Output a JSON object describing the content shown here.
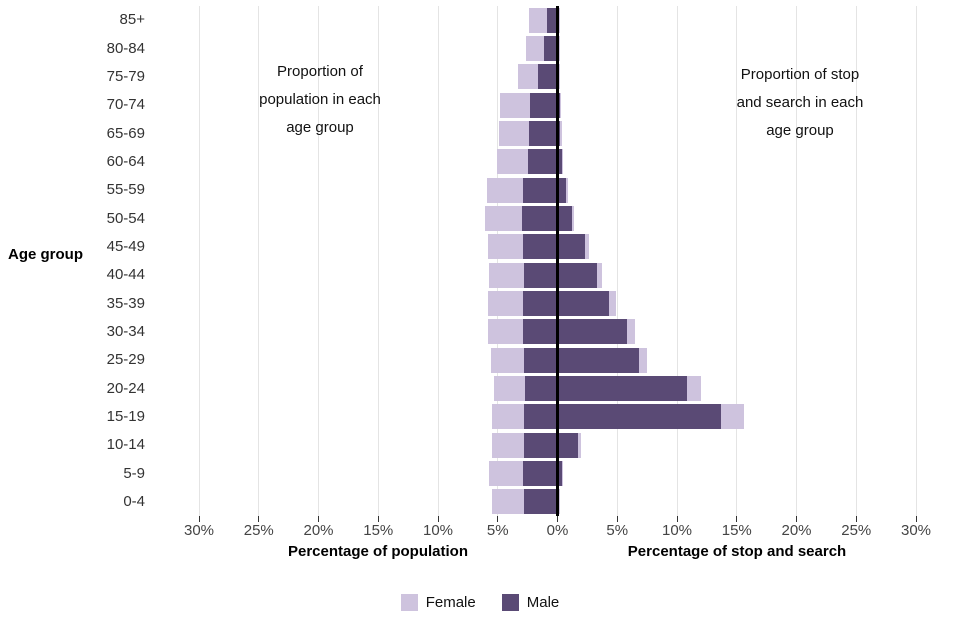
{
  "chart_data": {
    "type": "bar",
    "subtype": "population-pyramid-back-to-back",
    "age_groups": [
      "85+",
      "80-84",
      "75-79",
      "70-74",
      "65-69",
      "60-64",
      "55-59",
      "50-54",
      "45-49",
      "40-44",
      "35-39",
      "30-34",
      "25-29",
      "20-24",
      "15-19",
      "10-14",
      "5-9",
      "0-4"
    ],
    "population": {
      "male": [
        0.9,
        1.1,
        1.6,
        2.3,
        2.4,
        2.5,
        2.9,
        3.0,
        2.9,
        2.8,
        2.9,
        2.9,
        2.8,
        2.7,
        2.8,
        2.8,
        2.9,
        2.8
      ],
      "female": [
        1.5,
        1.5,
        1.7,
        2.5,
        2.5,
        2.6,
        3.0,
        3.1,
        2.9,
        2.9,
        2.9,
        2.9,
        2.8,
        2.6,
        2.7,
        2.7,
        2.8,
        2.7
      ]
    },
    "stop_and_search": {
      "male": [
        0.1,
        0.1,
        0.15,
        0.2,
        0.25,
        0.4,
        0.75,
        1.2,
        2.3,
        3.3,
        4.3,
        5.8,
        6.8,
        10.8,
        13.7,
        1.7,
        0.35,
        0.15
      ],
      "female": [
        0.05,
        0.05,
        0.05,
        0.1,
        0.1,
        0.1,
        0.15,
        0.2,
        0.3,
        0.4,
        0.6,
        0.7,
        0.7,
        1.2,
        1.9,
        0.3,
        0.1,
        0.05
      ]
    },
    "x_tick_values": [
      -30,
      -25,
      -20,
      -15,
      -10,
      -5,
      0,
      5,
      10,
      15,
      20,
      25,
      30
    ],
    "x_tick_labels": [
      "30%",
      "25%",
      "20%",
      "15%",
      "10%",
      "5%",
      "0%",
      "5%",
      "10%",
      "15%",
      "20%",
      "25%",
      "30%"
    ],
    "units": "percent",
    "grid": "vertical-major-only",
    "legend_position": "bottom",
    "y_axis_title": "Age group",
    "left_axis_title": "Percentage of population",
    "right_axis_title": "Percentage of stop and search",
    "annotation_left": "Proportion of\npopulation in each\nage group",
    "annotation_right": "Proportion of stop\nand search in each\nage group",
    "colors": {
      "female": "#cec3de",
      "male": "#5a4a75",
      "zero_line": "#000000",
      "gridline": "#e4e4e4"
    },
    "legend": {
      "items": [
        {
          "label": "Female",
          "key": "female"
        },
        {
          "label": "Male",
          "key": "male"
        }
      ]
    }
  }
}
